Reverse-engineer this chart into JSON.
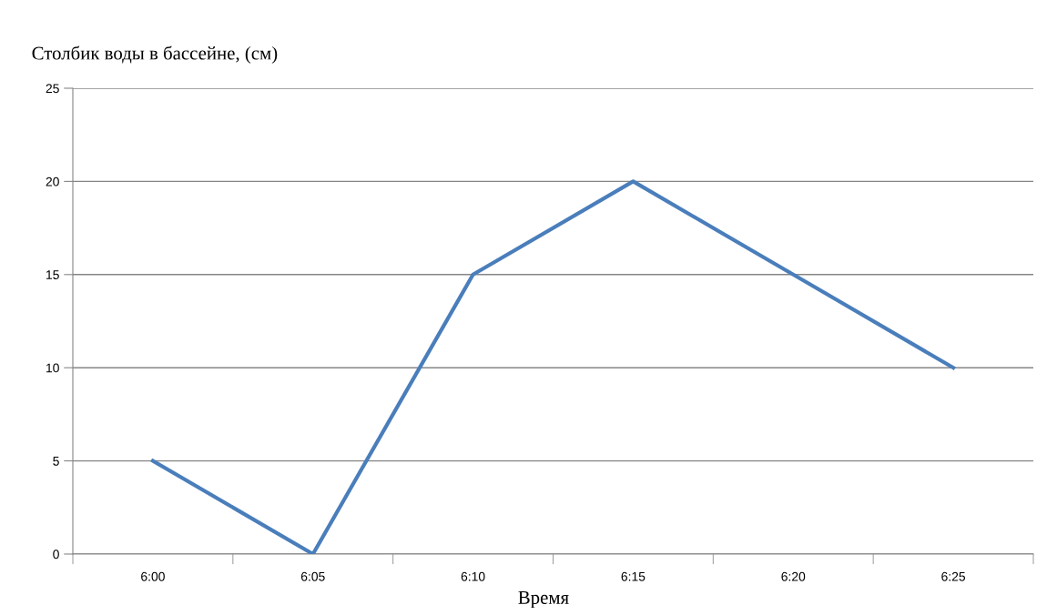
{
  "chart_data": {
    "type": "line",
    "ylabel": "Столбик воды в бассейне, (см)",
    "xlabel": "Время",
    "categories": [
      "6:00",
      "6:05",
      "6:10",
      "6:15",
      "6:20",
      "6:25"
    ],
    "series": [
      {
        "color": "#4a7ebb",
        "values": [
          5,
          0,
          15,
          20,
          15,
          10
        ]
      }
    ],
    "ylim": [
      0,
      25
    ],
    "yticks": [
      0,
      5,
      10,
      15,
      20,
      25
    ],
    "grid": "y",
    "legend": false,
    "marker": "none",
    "line_style": "solid"
  }
}
